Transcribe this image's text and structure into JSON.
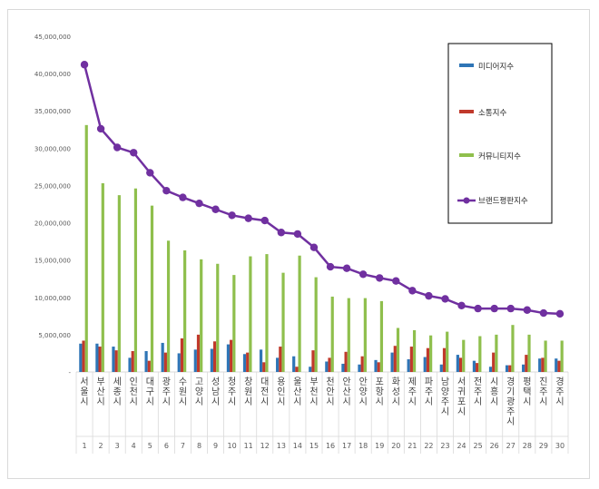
{
  "chart_data": {
    "type": "bar+line",
    "title": "",
    "xlabel": "",
    "ylabel": "",
    "ylim": [
      0,
      45000000
    ],
    "yticks": [
      "-",
      "5,000,000",
      "10,000,000",
      "15,000,000",
      "20,000,000",
      "25,000,000",
      "30,000,000",
      "35,000,000",
      "40,000,000",
      "45,000,000"
    ],
    "legend_position": "right",
    "grid": false,
    "categories": [
      "서울시",
      "부산시",
      "세종시",
      "인천시",
      "대구시",
      "광주시",
      "수원시",
      "고양시",
      "성남시",
      "청주시",
      "창원시",
      "대전시",
      "용인시",
      "울산시",
      "부천시",
      "천안시",
      "안산시",
      "안양시",
      "포항시",
      "화성시",
      "제주시",
      "파주시",
      "남양주시",
      "서귀포시",
      "전주시",
      "시흥시",
      "경기 광주시",
      "평택시",
      "진주시",
      "경주시"
    ],
    "ranks": [
      "1",
      "2",
      "3",
      "4",
      "5",
      "6",
      "7",
      "8",
      "9",
      "10",
      "11",
      "12",
      "13",
      "14",
      "15",
      "16",
      "17",
      "18",
      "19",
      "20",
      "21",
      "22",
      "23",
      "24",
      "25",
      "26",
      "27",
      "28",
      "29",
      "30"
    ],
    "series": [
      {
        "name": "미디어지수",
        "type": "bar",
        "color": "#2e75b6",
        "values": [
          3800000,
          3800000,
          3400000,
          1900000,
          2800000,
          3900000,
          2500000,
          3000000,
          3100000,
          3700000,
          2400000,
          3000000,
          1900000,
          2100000,
          700000,
          1400000,
          1100000,
          1000000,
          1600000,
          2600000,
          1700000,
          2000000,
          1000000,
          2300000,
          1500000,
          700000,
          900000,
          1000000,
          1800000,
          1800000
        ]
      },
      {
        "name": "소통지수",
        "type": "bar",
        "color": "#c0392b",
        "values": [
          4200000,
          3400000,
          2900000,
          2800000,
          1500000,
          2600000,
          4500000,
          5000000,
          4100000,
          4300000,
          2600000,
          1300000,
          3400000,
          700000,
          2900000,
          1900000,
          2700000,
          2100000,
          1300000,
          3500000,
          3400000,
          3200000,
          3200000,
          1900000,
          1200000,
          2600000,
          900000,
          2300000,
          1900000,
          1500000
        ]
      },
      {
        "name": "커뮤니티지수",
        "type": "bar",
        "color": "#8fbf4d",
        "values": [
          33100000,
          25300000,
          23700000,
          24600000,
          22300000,
          17600000,
          16300000,
          15100000,
          14500000,
          13000000,
          15500000,
          15800000,
          13300000,
          15600000,
          12700000,
          10100000,
          9900000,
          9900000,
          9500000,
          5900000,
          5600000,
          4900000,
          5400000,
          4300000,
          4800000,
          5000000,
          6300000,
          5000000,
          4200000,
          4200000
        ]
      },
      {
        "name": "브랜드평판지수",
        "type": "line",
        "color": "#7030a0",
        "values": [
          41200000,
          32600000,
          30100000,
          29400000,
          26700000,
          24300000,
          23400000,
          22600000,
          21800000,
          21000000,
          20600000,
          20300000,
          18700000,
          18500000,
          16700000,
          14100000,
          13900000,
          13100000,
          12600000,
          12200000,
          10900000,
          10200000,
          9800000,
          8900000,
          8500000,
          8500000,
          8500000,
          8300000,
          7900000,
          7800000
        ]
      }
    ]
  }
}
